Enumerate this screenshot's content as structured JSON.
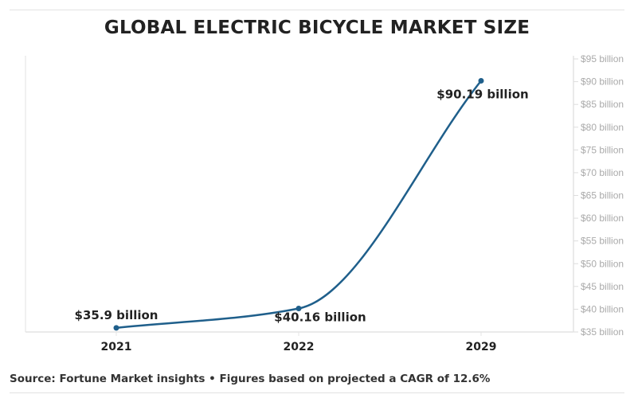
{
  "chart_data": {
    "type": "line",
    "title": "GLOBAL ELECTRIC BICYCLE MARKET SIZE",
    "categories": [
      "2021",
      "2022",
      "2029"
    ],
    "values": [
      35.9,
      40.16,
      90.19
    ],
    "data_labels": [
      "$35.9 billion",
      "$40.16 billion",
      "$90.19 billion"
    ],
    "ylim": [
      35,
      95
    ],
    "y_ticks": [
      35,
      40,
      45,
      50,
      55,
      60,
      65,
      70,
      75,
      80,
      85,
      90,
      95
    ],
    "y_tick_labels": [
      "$35 billion",
      "$40 billion",
      "$45 billion",
      "$50 billion",
      "$55 billion",
      "$60 billion",
      "$65 billion",
      "$70 billion",
      "$75 billion",
      "$80 billion",
      "$85 billion",
      "$90 billion",
      "$95 billion"
    ],
    "y_axis_position": "right",
    "grid": false,
    "line_color": "#1f5f8b",
    "source": "Source: Fortune Market insights • Figures based on projected a CAGR of 12.6%"
  }
}
